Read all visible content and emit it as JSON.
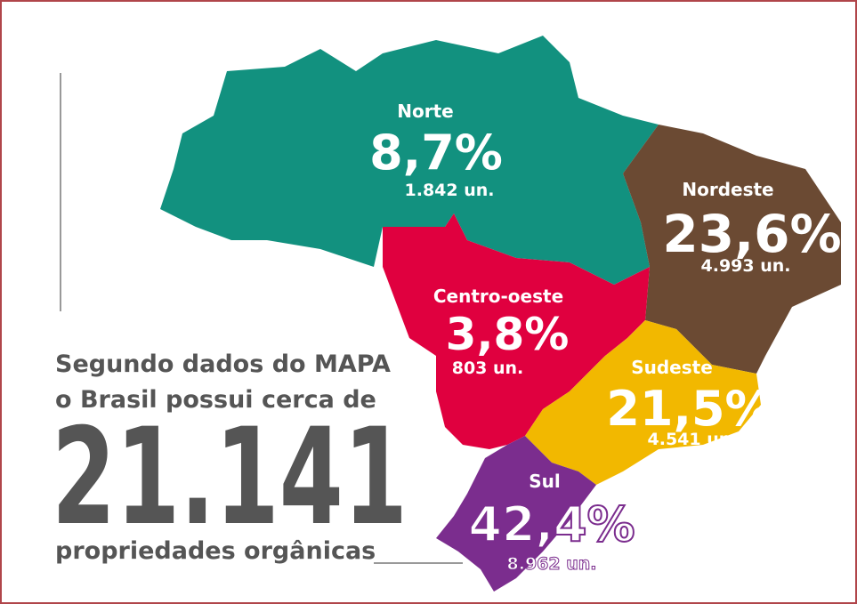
{
  "intro": {
    "line1": "Segundo dados do MAPA",
    "line2": "o Brasil possui cerca de",
    "total": "21.141",
    "caption": "propriedades orgânicas"
  },
  "regions": [
    {
      "name": "Norte",
      "percent": "8,7%",
      "units": "1.842 un."
    },
    {
      "name": "Nordeste",
      "percent": "23,6%",
      "units": "4.993 un."
    },
    {
      "name": "Centro-oeste",
      "percent": "3,8%",
      "units": "803 un."
    },
    {
      "name": "Sudeste",
      "percent": "21,5%",
      "units": "4.541 un."
    },
    {
      "name": "Sul",
      "percent": "42,4%",
      "units": "8.962 un."
    }
  ]
}
